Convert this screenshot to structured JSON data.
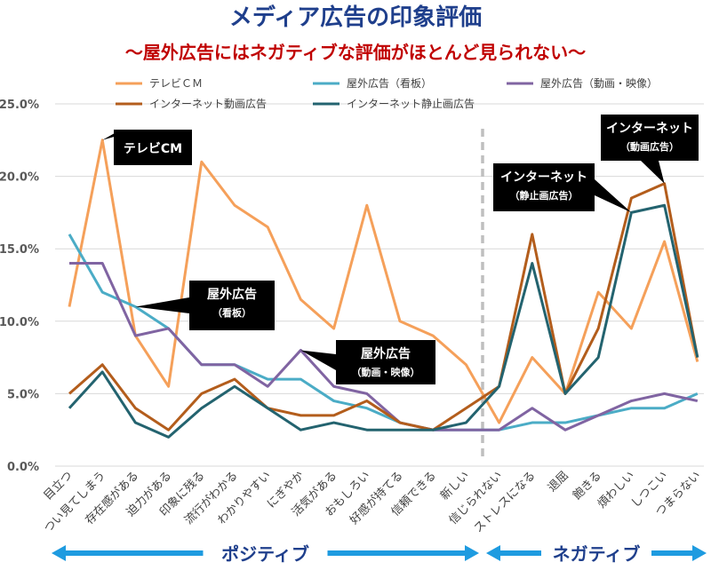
{
  "chart_data": {
    "type": "line",
    "title": "メディア広告の印象評価",
    "subtitle": "～屋外広告にはネガティブな評価がほとんど見られない～",
    "xlabel": "",
    "ylabel": "",
    "ylim": [
      0,
      25
    ],
    "yticks": [
      "0.0%",
      "5.0%",
      "10.0%",
      "15.0%",
      "20.0%",
      "25.0%"
    ],
    "grid": true,
    "legend_position": "top",
    "categories": [
      "目立つ",
      "つい見てしまう",
      "存在感がある",
      "迫力がある",
      "印象に残る",
      "流行がわかる",
      "わかりやすい",
      "にぎやか",
      "活気がある",
      "おもしろい",
      "好感が持てる",
      "信頼できる",
      "新しい",
      "信じられない",
      "ストレスになる",
      "退屈",
      "飽きる",
      "煩わしい",
      "しつこい",
      "つまらない"
    ],
    "series": [
      {
        "name": "テレビＣＭ",
        "color": "#F5A05A",
        "values": [
          11,
          22.5,
          9,
          5.5,
          21,
          18,
          16.5,
          11.5,
          9.5,
          18,
          10,
          9,
          7,
          3,
          7.5,
          5,
          12,
          9.5,
          15.5,
          7.2
        ]
      },
      {
        "name": "屋外広告（看板）",
        "color": "#4BACC6",
        "values": [
          16,
          12,
          11,
          9.5,
          7,
          7,
          6,
          6,
          4.5,
          4,
          3,
          2.5,
          2.5,
          2.5,
          3,
          3,
          3.5,
          4,
          4,
          5
        ]
      },
      {
        "name": "屋外広告（動画・映像）",
        "color": "#8064A2",
        "values": [
          14,
          14,
          9,
          9.5,
          7,
          7,
          5.5,
          8,
          5.5,
          5,
          3,
          2.5,
          2.5,
          2.5,
          4,
          2.5,
          3.5,
          4.5,
          5,
          4.5
        ]
      },
      {
        "name": "インターネット動画広告",
        "color": "#B35D1C",
        "values": [
          5,
          7,
          4,
          2.5,
          5,
          6,
          4,
          3.5,
          3.5,
          4.5,
          3,
          2.5,
          4,
          5.5,
          16,
          5,
          9.5,
          18.5,
          19.5,
          7.5
        ]
      },
      {
        "name": "インターネット静止画広告",
        "color": "#23636F",
        "values": [
          4,
          6.5,
          3,
          2,
          4,
          5.5,
          4,
          2.5,
          3,
          2.5,
          2.5,
          2.5,
          3,
          5.5,
          14,
          5,
          7.5,
          17.5,
          18,
          7.5
        ]
      }
    ],
    "callouts": [
      {
        "lines": [
          "テレビCM"
        ],
        "series": 0,
        "point": 1
      },
      {
        "lines": [
          "屋外広告",
          "（看板）"
        ],
        "series": 1,
        "point": 2
      },
      {
        "lines": [
          "屋外広告",
          "（動画・映像）"
        ],
        "series": 2,
        "point": 7
      },
      {
        "lines": [
          "インターネット",
          "（静止画広告）"
        ],
        "series": 4,
        "point": 17
      },
      {
        "lines": [
          "インターネット",
          "（動画広告）"
        ],
        "series": 3,
        "point": 18
      }
    ],
    "annotations": {
      "positive_label": "ポジティブ",
      "negative_label": "ネガティブ",
      "divider_after_category": 12
    }
  }
}
